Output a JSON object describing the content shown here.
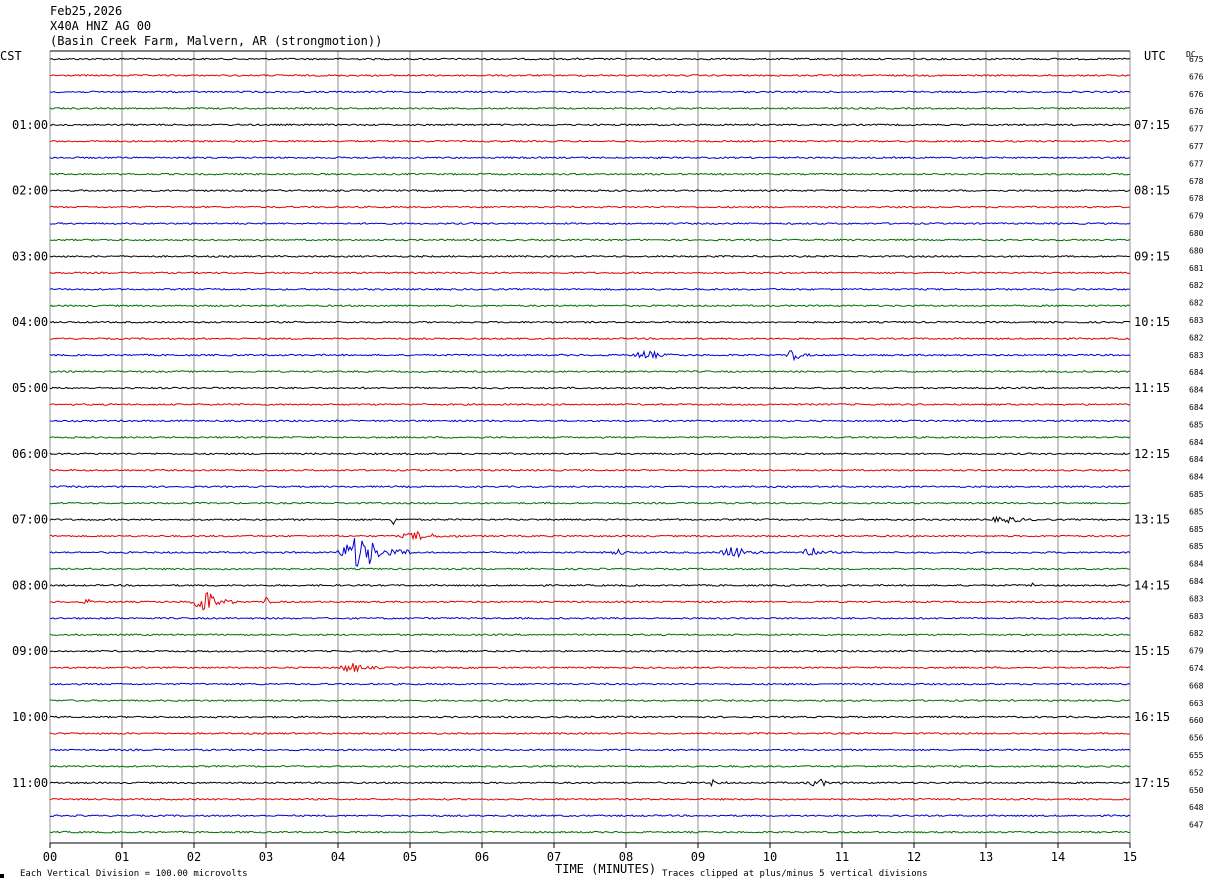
{
  "header": {
    "date": "Feb25,2026",
    "station": "X40A HNZ AG 00",
    "location": "(Basin Creek Farm, Malvern, AR (strongmotion))"
  },
  "labels": {
    "left_tz": "CST",
    "right_tz": "UTC",
    "dc": "DC"
  },
  "footer": {
    "scale_note": "Each Vertical Division =  100.00 microvolts",
    "xlabel": "TIME (MINUTES)",
    "clip_note": "Traces clipped at plus/minus 5 vertical divisions"
  },
  "colors": {
    "cycle": [
      "#000000",
      "#e00000",
      "#0000d0",
      "#007000"
    ],
    "grid": "#909090"
  },
  "chart_data": {
    "type": "line",
    "title": "X40A HNZ AG 00",
    "xlabel": "TIME (MINUTES)",
    "xlim": [
      0,
      15
    ],
    "x_ticks": [
      "00",
      "01",
      "02",
      "03",
      "04",
      "05",
      "06",
      "07",
      "08",
      "09",
      "10",
      "11",
      "12",
      "13",
      "14",
      "15"
    ],
    "num_traces": 48,
    "trace_minutes": 15,
    "left_hour_labels": [
      "01:00",
      "02:00",
      "03:00",
      "04:00",
      "05:00",
      "06:00",
      "07:00",
      "08:00",
      "09:00",
      "10:00",
      "11:00"
    ],
    "right_hour_labels": [
      "07:15",
      "08:15",
      "09:15",
      "10:15",
      "11:15",
      "12:15",
      "13:15",
      "14:15",
      "15:15",
      "16:15",
      "17:15"
    ],
    "dc_offsets": [
      675,
      676,
      676,
      676,
      677,
      677,
      677,
      678,
      678,
      679,
      680,
      680,
      681,
      682,
      682,
      683,
      682,
      683,
      684,
      684,
      684,
      685,
      684,
      684,
      684,
      685,
      685,
      685,
      685,
      684,
      684,
      683,
      683,
      682,
      679,
      674,
      668,
      663,
      660,
      656,
      655,
      652,
      650,
      648,
      647
    ],
    "events": [
      {
        "trace": 18,
        "start": 8.1,
        "end": 8.7,
        "amp": 0.5
      },
      {
        "trace": 18,
        "start": 10.2,
        "end": 10.6,
        "amp": 0.55
      },
      {
        "trace": 28,
        "start": 4.75,
        "end": 4.82,
        "amp": 1.8
      },
      {
        "trace": 28,
        "start": 13.0,
        "end": 13.9,
        "amp": 0.3
      },
      {
        "trace": 29,
        "start": 4.85,
        "end": 5.7,
        "amp": 0.45
      },
      {
        "trace": 30,
        "start": 4.0,
        "end": 5.0,
        "amp": 1.9
      },
      {
        "trace": 30,
        "start": 7.8,
        "end": 8.1,
        "amp": 0.35
      },
      {
        "trace": 30,
        "start": 9.3,
        "end": 9.9,
        "amp": 0.7
      },
      {
        "trace": 30,
        "start": 10.4,
        "end": 10.9,
        "amp": 0.6
      },
      {
        "trace": 32,
        "start": 13.6,
        "end": 13.7,
        "amp": 0.35
      },
      {
        "trace": 33,
        "start": 1.95,
        "end": 2.6,
        "amp": 1.3
      },
      {
        "trace": 33,
        "start": 2.95,
        "end": 3.1,
        "amp": 0.5
      },
      {
        "trace": 33,
        "start": 0.45,
        "end": 0.65,
        "amp": 0.3
      },
      {
        "trace": 37,
        "start": 4.0,
        "end": 4.6,
        "amp": 0.5
      },
      {
        "trace": 44,
        "start": 10.5,
        "end": 11.0,
        "amp": 0.4
      },
      {
        "trace": 44,
        "start": 9.1,
        "end": 9.4,
        "amp": 0.3
      }
    ]
  }
}
